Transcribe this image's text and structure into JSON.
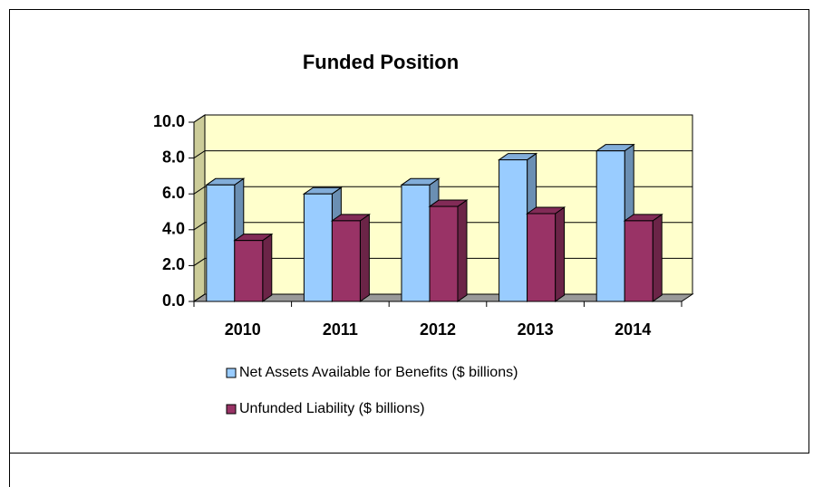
{
  "chart_data": {
    "type": "bar3d",
    "title": "Funded Position",
    "categories": [
      "2010",
      "2011",
      "2012",
      "2013",
      "2014"
    ],
    "series": [
      {
        "name": "Net Assets Available for Benefits ($ billions)",
        "color": "#99ccff",
        "values": [
          6.5,
          6.0,
          6.5,
          7.9,
          8.4
        ]
      },
      {
        "name": "Unfunded Liability ($ billions)",
        "color": "#993366",
        "values": [
          3.4,
          4.5,
          5.3,
          4.9,
          4.5
        ]
      }
    ],
    "ylim": [
      0,
      10
    ],
    "yticks": [
      {
        "value": 0,
        "label": "0.0"
      },
      {
        "value": 2,
        "label": "2.0"
      },
      {
        "value": 4,
        "label": "4.0"
      },
      {
        "value": 6,
        "label": "6.0"
      },
      {
        "value": 8,
        "label": "8.0"
      },
      {
        "value": 10,
        "label": "10.0"
      }
    ],
    "grid": true,
    "wall_color": "#ffffcc",
    "title_color": "#993366"
  }
}
